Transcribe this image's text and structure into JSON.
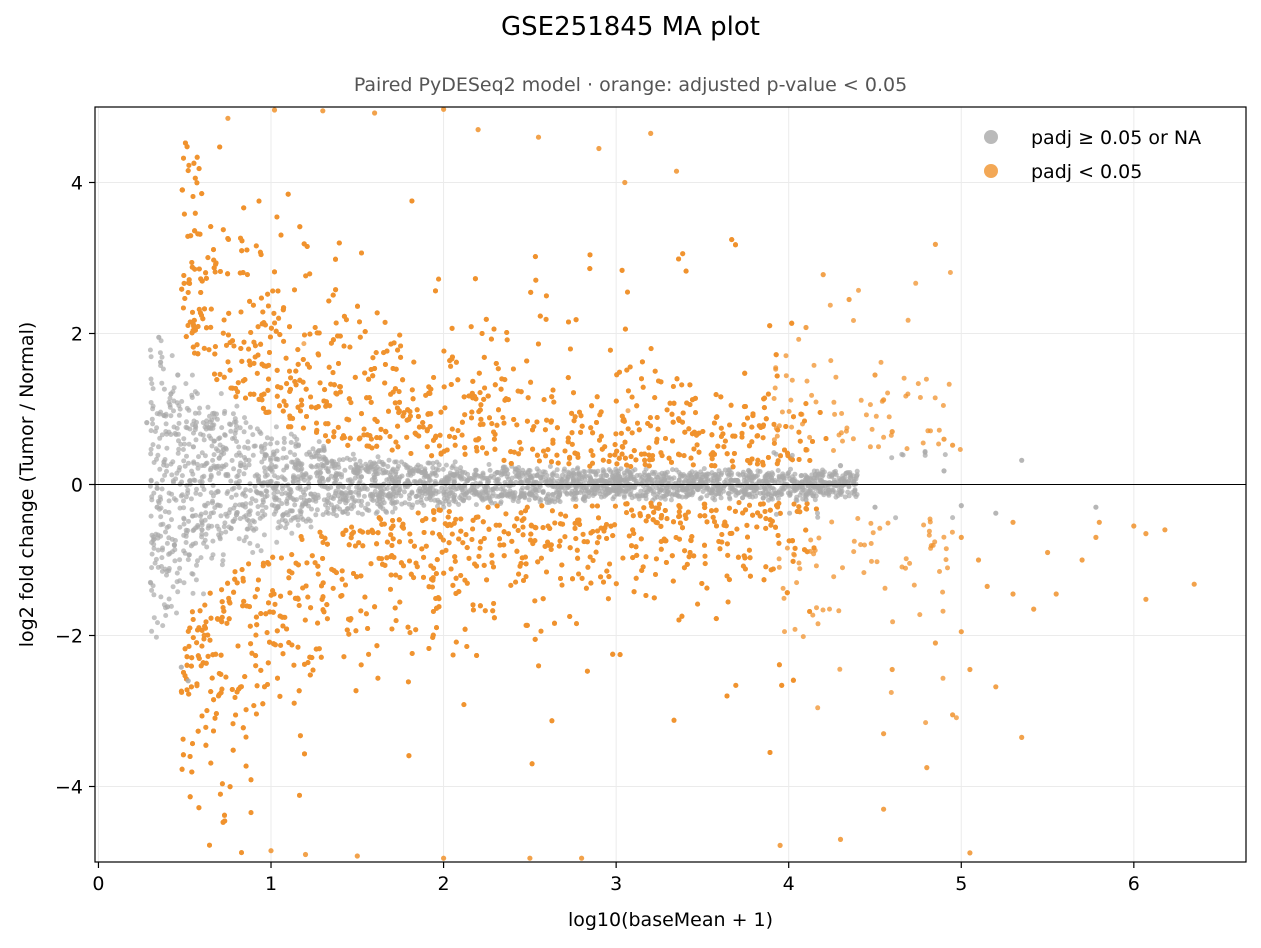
{
  "chart_data": {
    "type": "scatter",
    "title": "GSE251845 MA plot",
    "subtitle": "Paired PyDESeq2 model · orange: adjusted p-value < 0.05",
    "xlabel": "log10(baseMean + 1)",
    "ylabel": "log2 fold change (Tumor / Normal)",
    "xlim": [
      -0.02,
      6.65
    ],
    "ylim": [
      -5,
      5
    ],
    "xticks": [
      0,
      1,
      2,
      3,
      4,
      5,
      6
    ],
    "yticks": [
      -4,
      -2,
      0,
      2,
      4
    ],
    "xtick_labels": [
      "0",
      "1",
      "2",
      "3",
      "4",
      "5",
      "6"
    ],
    "ytick_labels": [
      "−4",
      "−2",
      "0",
      "2",
      "4"
    ],
    "grid": true,
    "zero_line": true,
    "legend_position": "top-right",
    "series": [
      {
        "name": "padj ≥ 0.05 or NA",
        "color": "#a9a9a9",
        "points": [
          [
            0.28,
            0.82
          ],
          [
            0.35,
            1.95
          ],
          [
            0.36,
            1.62
          ],
          [
            0.4,
            -1.62
          ],
          [
            0.42,
            1.2
          ],
          [
            0.44,
            -0.8
          ],
          [
            0.46,
            1.45
          ],
          [
            0.48,
            -2.42
          ],
          [
            0.52,
            -2.6
          ],
          [
            0.34,
            -0.3
          ],
          [
            0.38,
            0.3
          ],
          [
            0.55,
            0.5
          ],
          [
            0.6,
            -0.6
          ],
          [
            0.7,
            0.35
          ],
          [
            0.8,
            -0.4
          ],
          [
            1.0,
            0.2
          ],
          [
            1.2,
            -0.25
          ],
          [
            1.5,
            0.15
          ],
          [
            2.0,
            -0.1
          ],
          [
            2.5,
            0.12
          ],
          [
            3.0,
            -0.08
          ],
          [
            3.5,
            0.1
          ],
          [
            3.9,
            -0.15
          ],
          [
            4.1,
            -0.2
          ],
          [
            4.3,
            0.25
          ],
          [
            4.5,
            -0.3
          ],
          [
            4.9,
            0.18
          ],
          [
            5.0,
            -0.28
          ],
          [
            5.35,
            0.32
          ],
          [
            5.2,
            -0.38
          ],
          [
            5.78,
            -0.3
          ]
        ]
      },
      {
        "name": "padj < 0.05",
        "color": "#f0922c",
        "points": [
          [
            0.75,
            4.85
          ],
          [
            1.02,
            4.96
          ],
          [
            1.3,
            4.95
          ],
          [
            1.6,
            4.92
          ],
          [
            2.0,
            4.97
          ],
          [
            2.2,
            4.7
          ],
          [
            2.55,
            4.6
          ],
          [
            2.9,
            4.45
          ],
          [
            3.05,
            4.0
          ],
          [
            3.2,
            4.65
          ],
          [
            3.35,
            4.15
          ],
          [
            4.2,
            2.78
          ],
          [
            4.35,
            2.45
          ],
          [
            4.1,
            2.08
          ],
          [
            4.5,
            1.45
          ],
          [
            4.55,
            1.12
          ],
          [
            4.85,
            3.18
          ],
          [
            4.6,
            0.7
          ],
          [
            4.9,
            0.6
          ],
          [
            4.95,
            0.52
          ],
          [
            5.0,
            -0.7
          ],
          [
            5.1,
            -1.0
          ],
          [
            5.15,
            -1.35
          ],
          [
            5.3,
            -1.45
          ],
          [
            5.3,
            -0.5
          ],
          [
            5.5,
            -0.9
          ],
          [
            5.55,
            -1.45
          ],
          [
            5.7,
            -1.0
          ],
          [
            5.78,
            -0.7
          ],
          [
            5.8,
            -0.5
          ],
          [
            6.0,
            -0.55
          ],
          [
            6.07,
            -0.65
          ],
          [
            6.07,
            -1.52
          ],
          [
            6.18,
            -0.6
          ],
          [
            6.35,
            -1.32
          ],
          [
            5.42,
            -1.65
          ],
          [
            5.2,
            -2.68
          ],
          [
            5.35,
            -3.35
          ],
          [
            5.05,
            -2.45
          ],
          [
            5.0,
            -1.95
          ],
          [
            4.95,
            -3.05
          ],
          [
            4.8,
            -3.75
          ],
          [
            4.85,
            -2.1
          ],
          [
            4.55,
            -3.3
          ],
          [
            4.3,
            -4.7
          ],
          [
            4.55,
            -4.3
          ],
          [
            4.6,
            -2.45
          ],
          [
            5.05,
            -4.88
          ],
          [
            3.95,
            -4.78
          ],
          [
            2.8,
            -4.95
          ],
          [
            2.5,
            -4.95
          ],
          [
            2.0,
            -4.95
          ],
          [
            1.5,
            -4.92
          ],
          [
            1.2,
            -4.9
          ],
          [
            1.0,
            -4.85
          ]
        ]
      }
    ]
  }
}
